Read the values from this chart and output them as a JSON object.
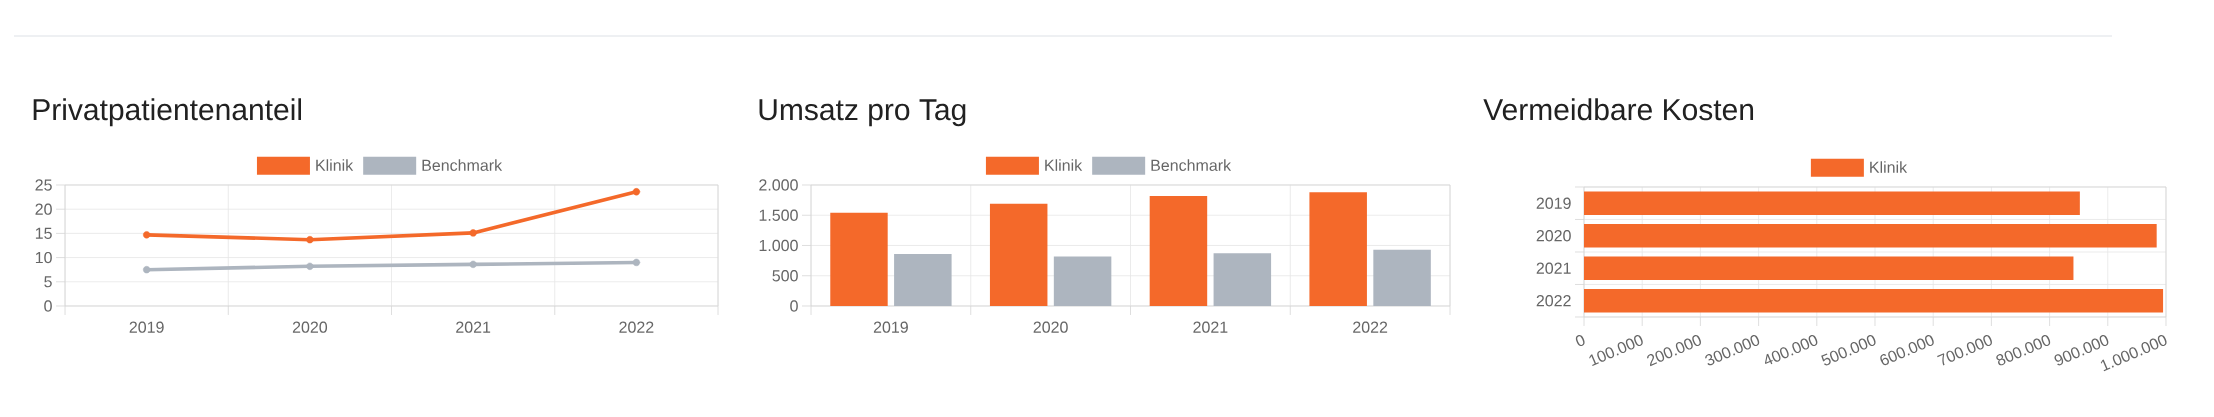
{
  "chart_data": [
    {
      "type": "line",
      "title": "Privatpatientenanteil",
      "categories": [
        "2019",
        "2020",
        "2021",
        "2022"
      ],
      "series": [
        {
          "name": "Klinik",
          "color": "#f4692a",
          "values": [
            14.7,
            13.7,
            15.1,
            23.6
          ]
        },
        {
          "name": "Benchmark",
          "color": "#adb5bf",
          "values": [
            7.5,
            8.2,
            8.6,
            9.0
          ]
        }
      ],
      "ylim": [
        0,
        25
      ],
      "yticks": [
        0,
        5,
        10,
        15,
        20,
        25
      ],
      "grid": true,
      "legend": "top",
      "marker": "circle",
      "line_style": "solid"
    },
    {
      "type": "bar",
      "title": "Umsatz pro Tag",
      "categories": [
        "2019",
        "2020",
        "2021",
        "2022"
      ],
      "series": [
        {
          "name": "Klinik",
          "color": "#f4692a",
          "values": [
            1540,
            1690,
            1820,
            1880
          ]
        },
        {
          "name": "Benchmark",
          "color": "#adb5bf",
          "values": [
            860,
            820,
            870,
            930
          ]
        }
      ],
      "ylim": [
        0,
        2000
      ],
      "yticks": [
        0,
        500,
        {
          "value": 1000,
          "label": "1.000"
        },
        {
          "value": 1500,
          "label": "1.500"
        },
        {
          "value": 2000,
          "label": "2.000"
        }
      ],
      "grid": true,
      "legend": "top"
    },
    {
      "type": "bar",
      "orientation": "horizontal",
      "title": "Vermeidbare Kosten",
      "categories": [
        "2019",
        "2020",
        "2021",
        "2022"
      ],
      "series": [
        {
          "name": "Klinik",
          "color": "#f4692a",
          "values": [
            852000,
            984000,
            841000,
            995000
          ]
        }
      ],
      "xlim": [
        0,
        1000000
      ],
      "xticks": [
        0,
        {
          "value": 100000,
          "label": "100.000"
        },
        {
          "value": 200000,
          "label": "200.000"
        },
        {
          "value": 300000,
          "label": "300.000"
        },
        {
          "value": 400000,
          "label": "400.000"
        },
        {
          "value": 500000,
          "label": "500.000"
        },
        {
          "value": 600000,
          "label": "600.000"
        },
        {
          "value": 700000,
          "label": "700.000"
        },
        {
          "value": 800000,
          "label": "800.000"
        },
        {
          "value": 900000,
          "label": "900.000"
        },
        {
          "value": 1000000,
          "label": "1.000.000"
        }
      ],
      "grid": true,
      "legend": "top"
    }
  ]
}
